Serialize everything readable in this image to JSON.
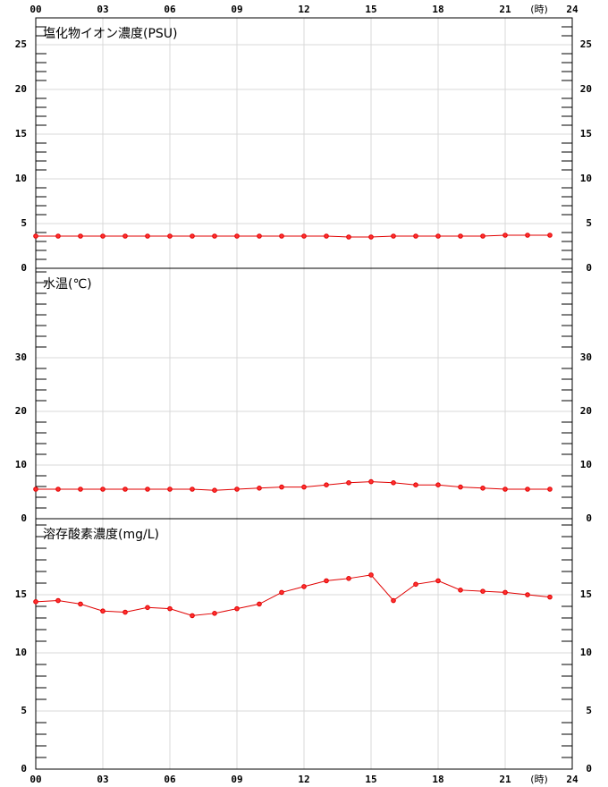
{
  "x_axis": {
    "xlim": [
      0,
      24
    ],
    "xticks": [
      {
        "value": 0,
        "label": "00"
      },
      {
        "value": 3,
        "label": "03"
      },
      {
        "value": 6,
        "label": "06"
      },
      {
        "value": 9,
        "label": "09"
      },
      12,
      15,
      18,
      21,
      24
    ],
    "unit_label": "(時)"
  },
  "chart_data": [
    {
      "type": "line",
      "title": "塩化物イオン濃度(PSU)",
      "x": [
        0,
        1,
        2,
        3,
        4,
        5,
        6,
        7,
        8,
        9,
        10,
        11,
        12,
        13,
        14,
        15,
        16,
        17,
        18,
        19,
        20,
        21,
        22,
        23
      ],
      "series": [
        {
          "color": "#e00000",
          "values": [
            3.6,
            3.6,
            3.6,
            3.6,
            3.6,
            3.6,
            3.6,
            3.6,
            3.6,
            3.6,
            3.6,
            3.6,
            3.6,
            3.6,
            3.5,
            3.5,
            3.6,
            3.6,
            3.6,
            3.6,
            3.6,
            3.7,
            3.7,
            3.7
          ]
        }
      ],
      "ylim": [
        0,
        28
      ],
      "yticks": [
        0,
        5,
        10,
        15,
        20,
        25
      ],
      "minor_tick_step": 1,
      "grid": true
    },
    {
      "type": "line",
      "title": "水温(℃)",
      "x": [
        0,
        1,
        2,
        3,
        4,
        5,
        6,
        7,
        8,
        9,
        10,
        11,
        12,
        13,
        14,
        15,
        16,
        17,
        18,
        19,
        20,
        21,
        22,
        23
      ],
      "series": [
        {
          "color": "#e00000",
          "values": [
            5.5,
            5.5,
            5.5,
            5.5,
            5.5,
            5.5,
            5.5,
            5.5,
            5.3,
            5.5,
            5.7,
            5.9,
            5.9,
            6.3,
            6.7,
            6.9,
            6.7,
            6.3,
            6.3,
            5.9,
            5.7,
            5.5,
            5.5,
            5.5
          ]
        }
      ],
      "ylim": [
        0,
        46.67
      ],
      "yticks": [
        0,
        10,
        20,
        30
      ],
      "minor_tick_step": 2,
      "grid": true
    },
    {
      "type": "line",
      "title": "溶存酸素濃度(mg/L)",
      "x": [
        0,
        1,
        2,
        3,
        4,
        5,
        6,
        7,
        8,
        9,
        10,
        11,
        12,
        13,
        14,
        15,
        16,
        17,
        18,
        19,
        20,
        21,
        22,
        23
      ],
      "series": [
        {
          "color": "#e00000",
          "values": [
            14.4,
            14.5,
            14.2,
            13.6,
            13.5,
            13.9,
            13.8,
            13.2,
            13.4,
            13.8,
            14.2,
            15.2,
            15.7,
            16.2,
            16.4,
            16.7,
            14.5,
            15.9,
            16.2,
            15.4,
            15.3,
            15.2,
            15.0,
            14.8
          ]
        }
      ],
      "ylim": [
        0,
        21.54
      ],
      "yticks": [
        0,
        5,
        10,
        15
      ],
      "minor_tick_step": 1,
      "grid": true
    }
  ]
}
